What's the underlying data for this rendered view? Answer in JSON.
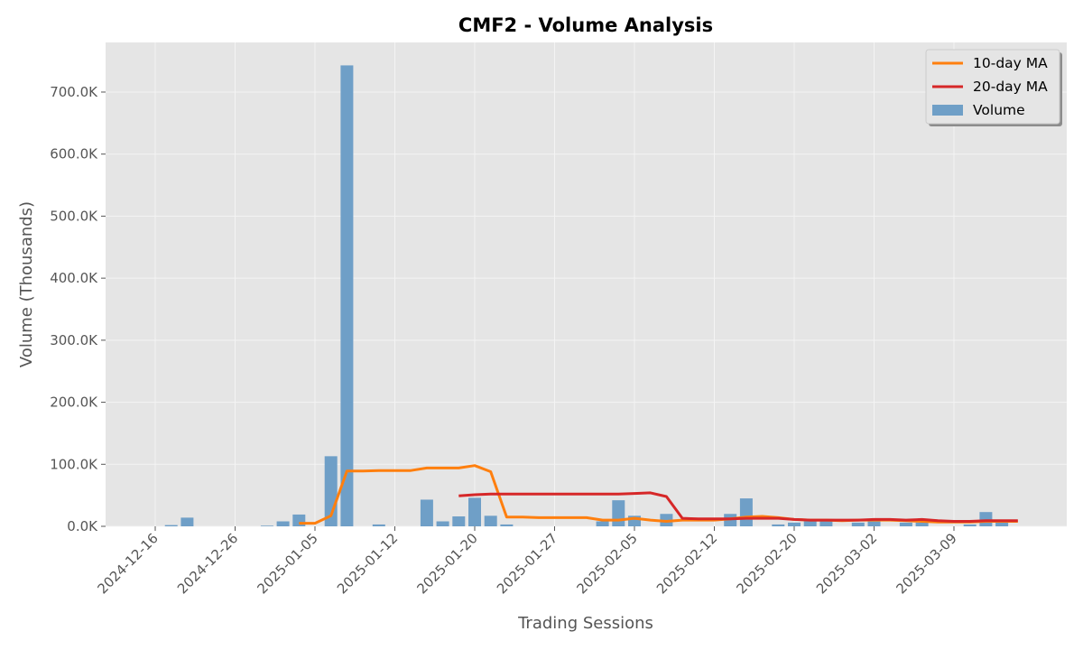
{
  "chart_data": {
    "type": "bar",
    "title": "CMF2 - Volume Analysis",
    "xlabel": "Trading Sessions",
    "ylabel": "Volume (Thousands)",
    "ylim": [
      0,
      780000
    ],
    "y_ticks": [
      0,
      100000,
      200000,
      300000,
      400000,
      500000,
      600000,
      700000
    ],
    "y_tick_labels": [
      "0.0K",
      "100.0K",
      "200.0K",
      "300.0K",
      "400.0K",
      "500.0K",
      "600.0K",
      "700.0K"
    ],
    "x_ticks": [
      "2024-12-16",
      "2024-12-26",
      "2025-01-05",
      "2025-01-12",
      "2025-01-20",
      "2025-01-27",
      "2025-02-05",
      "2025-02-12",
      "2025-02-20",
      "2025-03-02",
      "2025-03-09"
    ],
    "x_tick_index": [
      0,
      5,
      10,
      15,
      20,
      25,
      30,
      35,
      40,
      45,
      50
    ],
    "grid": true,
    "legend_position": "top-right",
    "colors": {
      "volume": "#6f9fc7",
      "ma10": "#ff7f0e",
      "ma20": "#d62728",
      "plot_background": "#e5e5e5",
      "grid": "#f4f4f4",
      "text": "#555555"
    },
    "legend": [
      {
        "label": "10-day MA",
        "kind": "line",
        "color": "#ff7f0e"
      },
      {
        "label": "20-day MA",
        "kind": "line",
        "color": "#d62728"
      },
      {
        "label": "Volume",
        "kind": "bar",
        "color": "#6f9fc7"
      }
    ],
    "series": [
      {
        "name": "Volume",
        "type": "bar",
        "values": [
          0,
          2000,
          14000,
          0,
          0,
          0,
          0,
          1000,
          8000,
          19000,
          0,
          113000,
          743000,
          0,
          3000,
          0,
          0,
          43000,
          8000,
          16000,
          46000,
          17000,
          3000,
          0,
          0,
          0,
          0,
          0,
          8000,
          42000,
          17000,
          0,
          20000,
          0,
          0,
          0,
          20000,
          45000,
          0,
          3000,
          6000,
          8000,
          8000,
          0,
          6000,
          8000,
          0,
          6000,
          6000,
          0,
          0,
          3000,
          23000,
          6000,
          0
        ]
      },
      {
        "name": "10-day MA",
        "type": "line",
        "values": [
          null,
          null,
          null,
          null,
          null,
          null,
          null,
          null,
          null,
          5000,
          5000,
          17000,
          89000,
          89000,
          90000,
          90000,
          90000,
          94000,
          94000,
          94000,
          98000,
          88000,
          15000,
          15000,
          14000,
          14000,
          14000,
          14000,
          10000,
          10000,
          13000,
          10000,
          8000,
          10000,
          10000,
          10000,
          12000,
          15000,
          16000,
          14000,
          11000,
          10000,
          10000,
          9000,
          10000,
          10000,
          10000,
          9000,
          8000,
          7000,
          7000,
          7000,
          8000,
          8000,
          8000
        ]
      },
      {
        "name": "20-day MA",
        "type": "line",
        "values": [
          null,
          null,
          null,
          null,
          null,
          null,
          null,
          null,
          null,
          null,
          null,
          null,
          null,
          null,
          null,
          null,
          null,
          null,
          null,
          49000,
          51000,
          52000,
          52000,
          52000,
          52000,
          52000,
          52000,
          52000,
          52000,
          52000,
          53000,
          54000,
          48000,
          13000,
          12000,
          12000,
          12000,
          13000,
          13000,
          13000,
          11000,
          10000,
          10000,
          10000,
          10000,
          11000,
          11000,
          10000,
          11000,
          9000,
          8000,
          8000,
          9000,
          9000,
          9000
        ]
      }
    ]
  }
}
